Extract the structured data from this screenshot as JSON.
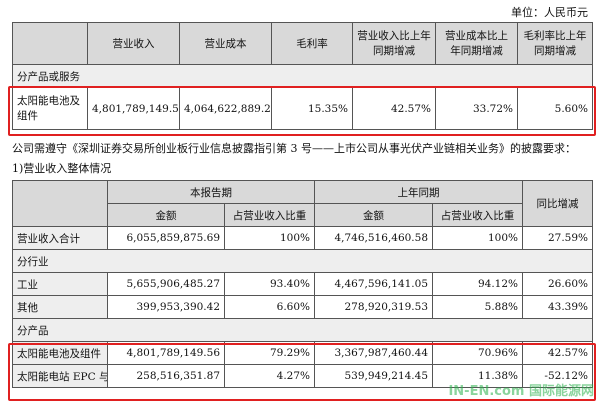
{
  "unit_note": "单位：人民币元",
  "table1": {
    "headers": [
      "",
      "营业收入",
      "营业成本",
      "毛利率",
      "营业收入比上年同期增减",
      "营业成本比上年同期增减",
      "毛利率比上年同期增减"
    ],
    "section": "分产品或服务",
    "row": [
      "太阳能电池及组件",
      "4,801,789,149.56",
      "4,064,622,889.29",
      "15.35%",
      "42.57%",
      "33.72%",
      "5.60%"
    ]
  },
  "paragraph1": "公司需遵守《深圳证券交易所创业板行业信息披露指引第 3 号——上市公司从事光伏产业链相关业务》的披露要求：",
  "paragraph2": "1)营业收入整体情况",
  "table2": {
    "head1": [
      "本报告期",
      "上年同期",
      "同比增减"
    ],
    "head2": [
      "金额",
      "占营业收入比重",
      "金额",
      "占营业收入比重"
    ],
    "total": [
      "营业收入合计",
      "6,055,859,875.69",
      "100%",
      "4,746,516,460.58",
      "100%",
      "27.59%"
    ],
    "section_industry": "分行业",
    "industry_rows": [
      [
        "工业",
        "5,655,906,485.27",
        "93.40%",
        "4,467,596,141.05",
        "94.12%",
        "26.60%"
      ],
      [
        "其他",
        "399,953,390.42",
        "6.60%",
        "278,920,319.53",
        "5.88%",
        "43.39%"
      ]
    ],
    "section_product": "分产品",
    "product_rows": [
      [
        "太阳能电池及组件",
        "4,801,789,149.56",
        "79.29%",
        "3,367,987,460.44",
        "70.96%",
        "42.57%"
      ],
      [
        "太阳能电站 EPC 与",
        "258,516,351.87",
        "4.27%",
        "539,949,214.45",
        "11.38%",
        "-52.12%"
      ]
    ]
  },
  "watermark": "IN-EN.com 国际能源网",
  "highlight_color": "#e02020"
}
